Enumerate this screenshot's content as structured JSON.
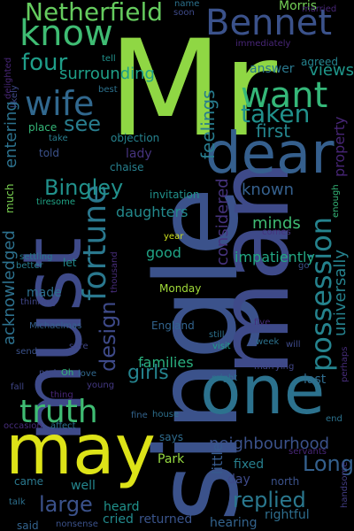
{
  "words": [
    {
      "text": "Mr",
      "color": "#8fd744"
    },
    {
      "text": "single",
      "color": "#3b528b"
    },
    {
      "text": "man",
      "color": "#3e4a89"
    },
    {
      "text": "must",
      "color": "#3e4a89"
    },
    {
      "text": "may",
      "color": "#dde318"
    },
    {
      "text": "one",
      "color": "#2c728e"
    },
    {
      "text": "dear",
      "color": "#355f8d"
    },
    {
      "text": "Bennet",
      "color": "#3b528b"
    },
    {
      "text": "want",
      "color": "#35b779"
    },
    {
      "text": "know",
      "color": "#3fbc73"
    },
    {
      "text": "wife",
      "color": "#31688e"
    },
    {
      "text": "Netherfield",
      "color": "#65cb5e"
    },
    {
      "text": "truth",
      "color": "#3fbc73"
    },
    {
      "text": "fortune",
      "color": "#2a788e"
    },
    {
      "text": "possession",
      "color": "#25838e"
    },
    {
      "text": "taken",
      "color": "#21918c"
    },
    {
      "text": "four",
      "color": "#1f9e89"
    },
    {
      "text": "Bingley",
      "color": "#21918c"
    },
    {
      "text": "see",
      "color": "#287d8e"
    },
    {
      "text": "large",
      "color": "#3b528b"
    },
    {
      "text": "replied",
      "color": "#2a788e"
    },
    {
      "text": "Long",
      "color": "#34608d"
    },
    {
      "text": "design",
      "color": "#3e4a89"
    },
    {
      "text": "girls",
      "color": "#25848e"
    },
    {
      "text": "first",
      "color": "#24868e"
    },
    {
      "text": "feelings",
      "color": "#287c8e"
    },
    {
      "text": "views",
      "color": "#1f978b"
    },
    {
      "text": "surrounding",
      "color": "#1fa088"
    },
    {
      "text": "universally",
      "color": "#26828e"
    },
    {
      "text": "acknowledged",
      "color": "#2d718e"
    },
    {
      "text": "neighbourhood",
      "color": "#3b528b"
    },
    {
      "text": "known",
      "color": "#35608d"
    },
    {
      "text": "considered",
      "color": "#46337e"
    },
    {
      "text": "minds",
      "color": "#3fbc73"
    },
    {
      "text": "entering",
      "color": "#2c728e"
    },
    {
      "text": "daughters",
      "color": "#238a8d"
    },
    {
      "text": "families",
      "color": "#2ab07f"
    },
    {
      "text": "good",
      "color": "#20a486"
    },
    {
      "text": "impatiently",
      "color": "#22a884"
    },
    {
      "text": "little",
      "color": "#375b8d"
    },
    {
      "text": "property",
      "color": "#482677"
    },
    {
      "text": "made",
      "color": "#2d708e"
    },
    {
      "text": "lady",
      "color": "#46337e"
    },
    {
      "text": "last",
      "color": "#2f6c8e"
    },
    {
      "text": "fixed",
      "color": "#277f8e"
    },
    {
      "text": "well",
      "color": "#24868e"
    },
    {
      "text": "returned",
      "color": "#3a548c"
    },
    {
      "text": "rightful",
      "color": "#2e6e8e"
    },
    {
      "text": "heard",
      "color": "#20928c"
    },
    {
      "text": "cried",
      "color": "#238a8d"
    },
    {
      "text": "hearing",
      "color": "#33638d"
    },
    {
      "text": "day",
      "color": "#3e4a89"
    },
    {
      "text": "Park",
      "color": "#95d840"
    },
    {
      "text": "Morris",
      "color": "#73d056"
    },
    {
      "text": "answer",
      "color": "#2a788e"
    },
    {
      "text": "agreed",
      "color": "#25838e"
    },
    {
      "text": "told",
      "color": "#3b528b"
    },
    {
      "text": "chaise",
      "color": "#277f8e"
    },
    {
      "text": "place",
      "color": "#35b779"
    },
    {
      "text": "invitation",
      "color": "#21918c"
    },
    {
      "text": "objection",
      "color": "#26828e"
    },
    {
      "text": "much",
      "color": "#7ad151"
    },
    {
      "text": "let",
      "color": "#238a8d"
    },
    {
      "text": "Monday",
      "color": "#a0da39"
    },
    {
      "text": "England",
      "color": "#32648e"
    },
    {
      "text": "says",
      "color": "#2f6c8e"
    },
    {
      "text": "north",
      "color": "#3b528b"
    },
    {
      "text": "came",
      "color": "#2a788e"
    },
    {
      "text": "said",
      "color": "#33638d"
    },
    {
      "text": "tell",
      "color": "#21918c"
    },
    {
      "text": "delighted",
      "color": "#482677"
    },
    {
      "text": "likely",
      "color": "#3e4a89"
    },
    {
      "text": "best",
      "color": "#2c728e"
    },
    {
      "text": "take",
      "color": "#287d8e"
    },
    {
      "text": "enough",
      "color": "#35b779"
    },
    {
      "text": "tiresome",
      "color": "#20a486"
    },
    {
      "text": "year",
      "color": "#cde11d"
    },
    {
      "text": "comes",
      "color": "#46337e"
    },
    {
      "text": "settling",
      "color": "#2a788e"
    },
    {
      "text": "better",
      "color": "#287d8e"
    },
    {
      "text": "thinking",
      "color": "#404688"
    },
    {
      "text": "thousand",
      "color": "#472d7b"
    },
    {
      "text": "go",
      "color": "#3b528b"
    },
    {
      "text": "Michaelmas",
      "color": "#35608d"
    },
    {
      "text": "sure",
      "color": "#404688"
    },
    {
      "text": "send",
      "color": "#3b528b"
    },
    {
      "text": "party",
      "color": "#3e4a89"
    },
    {
      "text": "Oh",
      "color": "#35b779"
    },
    {
      "text": "love",
      "color": "#31688e"
    },
    {
      "text": "young",
      "color": "#443983"
    },
    {
      "text": "fall",
      "color": "#404688"
    },
    {
      "text": "thing",
      "color": "#482677"
    },
    {
      "text": "occasion",
      "color": "#472d7b"
    },
    {
      "text": "affect",
      "color": "#2d708e"
    },
    {
      "text": "fine",
      "color": "#33638d"
    },
    {
      "text": "house",
      "color": "#2d708e"
    },
    {
      "text": "five",
      "color": "#472d7b"
    },
    {
      "text": "still",
      "color": "#2c728e"
    },
    {
      "text": "visit",
      "color": "#1f9e89"
    },
    {
      "text": "week",
      "color": "#2c728e"
    },
    {
      "text": "will",
      "color": "#3e4a89"
    },
    {
      "text": "marrying",
      "color": "#404688"
    },
    {
      "text": "might",
      "color": "#2c728e"
    },
    {
      "text": "perhaps",
      "color": "#472d7b"
    },
    {
      "text": "end",
      "color": "#2c728e"
    },
    {
      "text": "servants",
      "color": "#482677"
    },
    {
      "text": "handsome",
      "color": "#433e85"
    },
    {
      "text": "talk",
      "color": "#2d708e"
    },
    {
      "text": "nonsense",
      "color": "#3b528b"
    },
    {
      "text": "married",
      "color": "#482677"
    },
    {
      "text": "name",
      "color": "#2c728e"
    },
    {
      "text": "soon",
      "color": "#3e4a89"
    },
    {
      "text": "immediately",
      "color": "#482677"
    }
  ]
}
